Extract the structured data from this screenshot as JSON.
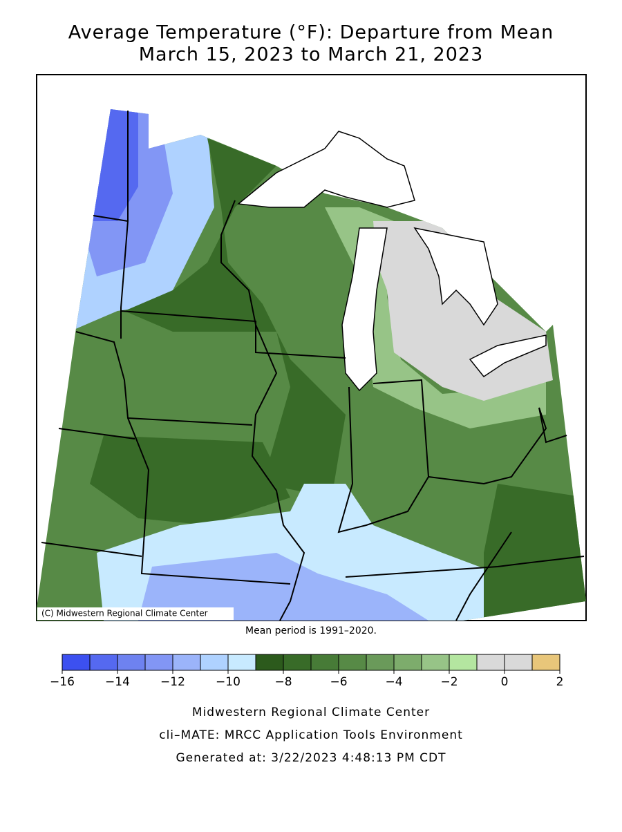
{
  "title": "Average Temperature (°F): Departure from Mean",
  "subtitle": "March 15, 2023 to March 21, 2023",
  "credit": "(C) Midwestern Regional Climate Center",
  "note": "Mean period is 1991–2020.",
  "legend": {
    "bins": [
      -16,
      -15,
      -14,
      -13,
      -12,
      -11,
      -10,
      -9,
      -8,
      -7,
      -6,
      -5,
      -4,
      -3,
      -2,
      -1,
      0,
      1,
      2
    ],
    "colors": [
      "#3c50f0",
      "#5569f0",
      "#6e82f0",
      "#8296f5",
      "#9bb4fa",
      "#afd2ff",
      "#c8eaff",
      "#2c5a1c",
      "#386b28",
      "#477b37",
      "#578a46",
      "#6a9a5a",
      "#7dac6c",
      "#97c487",
      "#b4e6a0",
      "#d9d9d9",
      "#d9d9d9",
      "#e8c67a"
    ],
    "ticks": [
      {
        "value": -16,
        "label": "−16"
      },
      {
        "value": -14,
        "label": "−14"
      },
      {
        "value": -12,
        "label": "−12"
      },
      {
        "value": -10,
        "label": "−10"
      },
      {
        "value": -8,
        "label": "−8"
      },
      {
        "value": -6,
        "label": "−6"
      },
      {
        "value": -4,
        "label": "−4"
      },
      {
        "value": -2,
        "label": "−2"
      },
      0,
      2
    ]
  },
  "footer": [
    "Midwestern Regional Climate Center",
    "cli–MATE: MRCC Application Tools Environment",
    "Generated at: 3/22/2023 4:48:13 PM CDT"
  ]
}
